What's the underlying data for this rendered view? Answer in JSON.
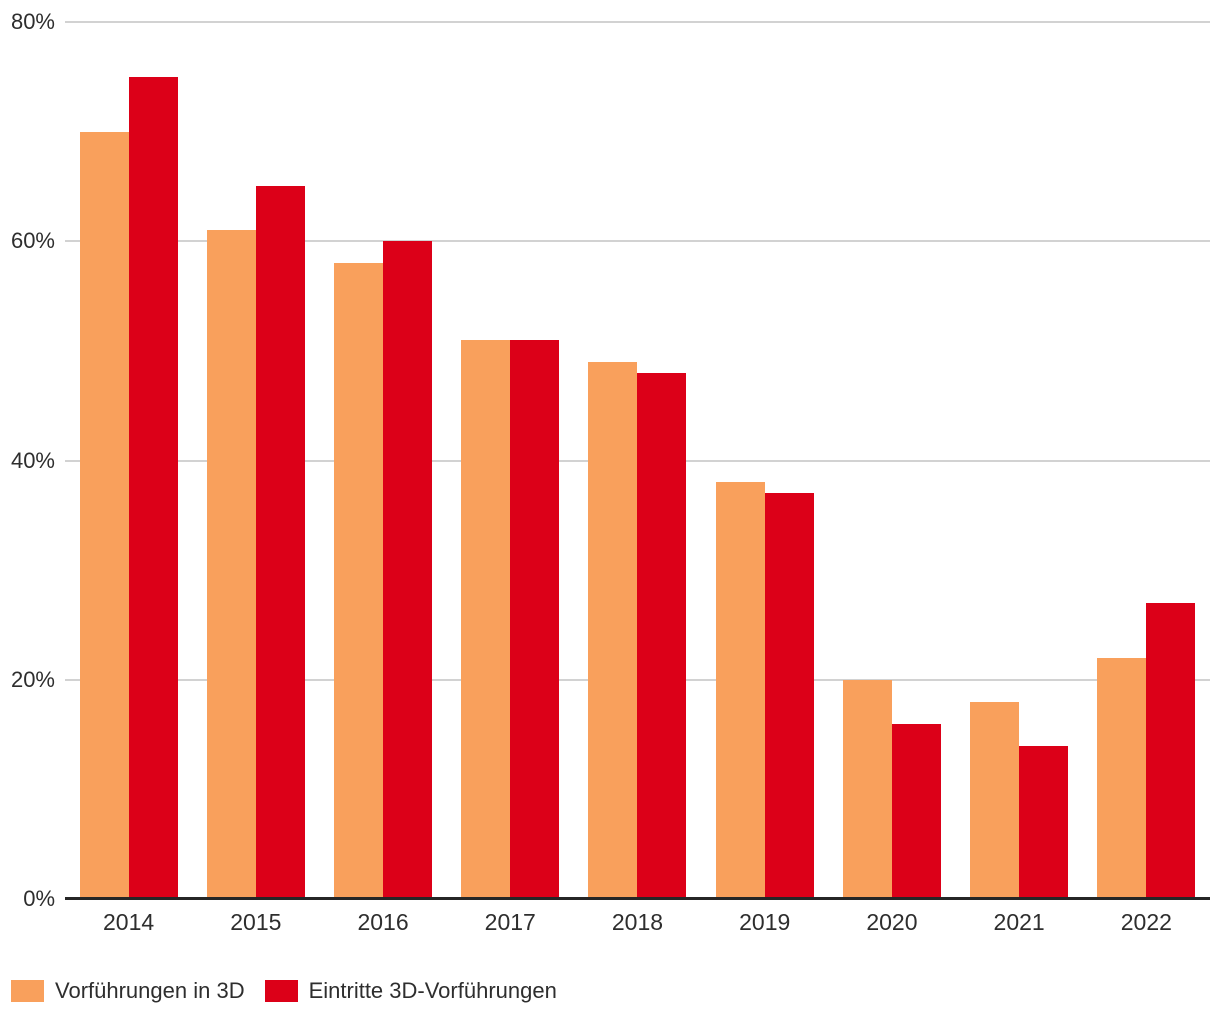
{
  "chart_data": {
    "type": "bar",
    "categories": [
      "2014",
      "2015",
      "2016",
      "2017",
      "2018",
      "2019",
      "2020",
      "2021",
      "2022"
    ],
    "series": [
      {
        "name": "Vorführungen in 3D",
        "color": "#F9A05C",
        "values": [
          70,
          61,
          58,
          51,
          49,
          38,
          20,
          18,
          22
        ]
      },
      {
        "name": "Eintritte 3D-Vorführungen",
        "color": "#DC0018",
        "values": [
          75,
          65,
          60,
          51,
          48,
          37,
          16,
          14,
          27
        ]
      }
    ],
    "title": "",
    "xlabel": "",
    "ylabel": "",
    "ylim": [
      0,
      80
    ],
    "yticks": [
      {
        "value": 80,
        "label": "80%"
      },
      {
        "value": 60,
        "label": "60%"
      },
      {
        "value": 40,
        "label": "40%"
      },
      {
        "value": 20,
        "label": "20%"
      },
      {
        "value": 0,
        "label": "0%"
      }
    ],
    "grid": true,
    "legend_position": "bottom-left"
  },
  "colors": {
    "background": "#FFFFFF",
    "gridline": "#D2D2D2",
    "axis": "#262626",
    "text": "#2E2E2E"
  }
}
